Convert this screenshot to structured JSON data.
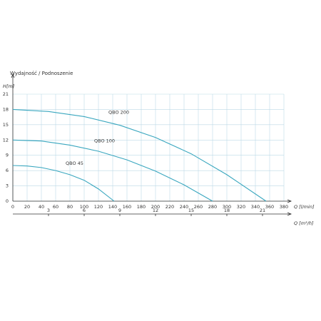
{
  "chart_data": {
    "type": "line",
    "title": "Wydajność / Podnoszenie",
    "y_label": "H[m]",
    "x_label": "Q  [l/min]",
    "x2_label": "Q  [m³/h]",
    "xlim": [
      0,
      380
    ],
    "xticks": [
      0,
      20,
      40,
      60,
      80,
      100,
      120,
      140,
      160,
      180,
      200,
      220,
      240,
      260,
      280,
      300,
      320,
      340,
      360,
      380
    ],
    "x2lim": [
      0,
      22.8
    ],
    "x2ticks": [
      3,
      6,
      9,
      12,
      15,
      18,
      21
    ],
    "ylim": [
      0,
      21
    ],
    "yticks": [
      0,
      3,
      6,
      9,
      12,
      15,
      18,
      21
    ],
    "grid": true,
    "series": [
      {
        "name": "QBO 200",
        "color": "#3aa7bf",
        "x": [
          0,
          50,
          100,
          150,
          200,
          250,
          300,
          355
        ],
        "values": [
          18,
          17.6,
          16.6,
          14.9,
          12.5,
          9.3,
          5.2,
          0
        ]
      },
      {
        "name": "QBO 100",
        "color": "#3aa7bf",
        "x": [
          0,
          40,
          80,
          120,
          160,
          200,
          240,
          280
        ],
        "values": [
          12,
          11.8,
          11,
          9.8,
          8.1,
          5.9,
          3.2,
          0
        ]
      },
      {
        "name": "QBO 45",
        "color": "#3aa7bf",
        "x": [
          0,
          20,
          40,
          60,
          80,
          100,
          120,
          142
        ],
        "values": [
          7,
          6.9,
          6.6,
          6,
          5.2,
          4.1,
          2.4,
          0
        ]
      }
    ]
  }
}
